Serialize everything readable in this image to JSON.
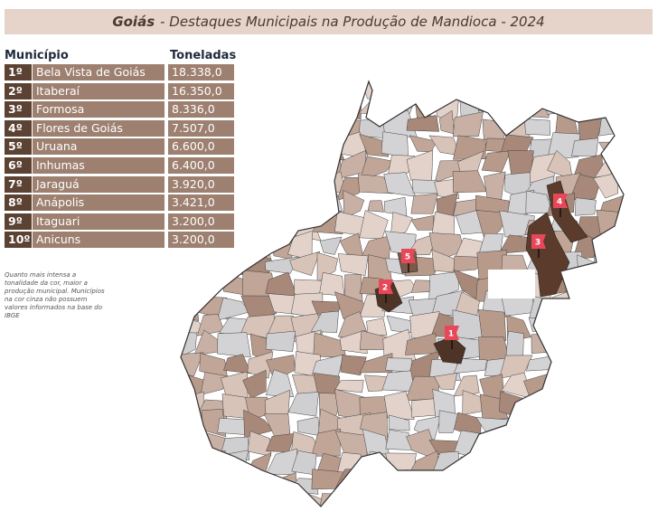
{
  "header": {
    "state": "Goiás",
    "title": "- Destaques Municipais na Produção de Mandioca - 2024"
  },
  "table": {
    "columns": [
      "Município",
      "Toneladas"
    ],
    "rows": [
      [
        "1º",
        "Bela Vista de Goiás",
        "18.338,0"
      ],
      [
        "2º",
        "Itaberaí",
        "16.350,0"
      ],
      [
        "3º",
        "Formosa",
        "8.336,0"
      ],
      [
        "4º",
        "Flores de Goiás",
        "7.507,0"
      ],
      [
        "5º",
        "Uruana",
        "6.600,0"
      ],
      [
        "6º",
        "Inhumas",
        "6.400,0"
      ],
      [
        "7º",
        "Jaraguá",
        "3.920,0"
      ],
      [
        "8º",
        "Anápolis",
        "3.421,0"
      ],
      [
        "9º",
        "Itaguari",
        "3.200,0"
      ],
      [
        "10º",
        "Anicuns",
        "3.200,0"
      ]
    ]
  },
  "note": "Quanto mais intensa a tonalidade da cor, maior a produção municipal. Municípios na cor cinza não possuem valores informados na base do IBGE",
  "map": {
    "markers": [
      {
        "label": "1"
      },
      {
        "label": "2"
      },
      {
        "label": "3"
      },
      {
        "label": "4"
      },
      {
        "label": "5"
      }
    ]
  }
}
